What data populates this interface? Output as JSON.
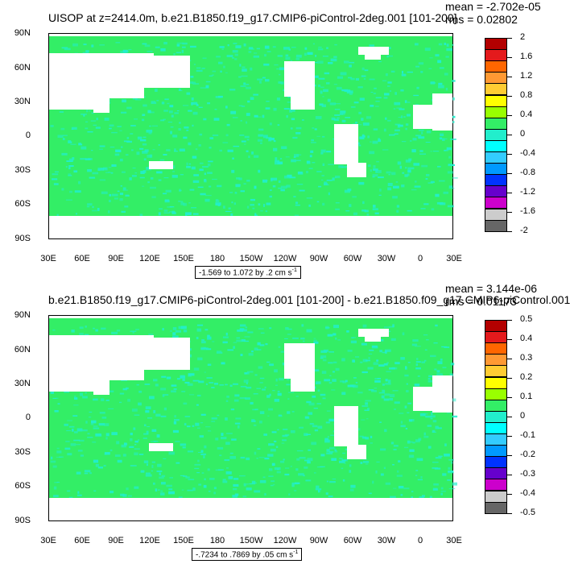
{
  "colors": {
    "ocean_main": "#33ee66",
    "ocean_alt": "#22eecc",
    "land": "#ffffff",
    "palette": [
      "#b30000",
      "#e41a1c",
      "#ff6600",
      "#ff9933",
      "#ffcc33",
      "#ffff00",
      "#99ff00",
      "#33ee66",
      "#22eecc",
      "#00ffff",
      "#33ccff",
      "#0099ff",
      "#0033ff",
      "#6600cc",
      "#cc00cc",
      "#cccccc",
      "#666666"
    ]
  },
  "latitude_labels": [
    "90N",
    "60N",
    "30N",
    "0",
    "30S",
    "60S",
    "90S"
  ],
  "longitude_labels": [
    "30E",
    "60E",
    "90E",
    "120E",
    "150E",
    "180",
    "150W",
    "120W",
    "90W",
    "60W",
    "30W",
    "0",
    "30E"
  ],
  "panels": [
    {
      "title": "UISOP at z=2414.0m, b.e21.B1850.f19_g17.CMIP6-piControl-2deg.001 [101-200]",
      "mean": "mean = -2.702e-05",
      "rms": "rms = 0.02802",
      "range_text": "-1.569 to 1.072 by .2 cm s",
      "range_unit_exp": "-1",
      "colorbar_labels": [
        "2",
        "1.6",
        "1.2",
        "0.8",
        "0.4",
        "0",
        "-0.4",
        "-0.8",
        "-1.2",
        "-1.6",
        "-2"
      ]
    },
    {
      "title": "b.e21.B1850.f19_g17.CMIP6-piControl-2deg.001 [101-200] - b.e21.B1850.f09_g17.CMIP6-piControl.001",
      "mean": "mean = 3.144e-06",
      "rms": "rms = 0.01173",
      "range_text": "-.7234 to .7869 by .05 cm s",
      "range_unit_exp": "-1",
      "colorbar_labels": [
        "0.5",
        "0.4",
        "0.3",
        "0.2",
        "0.1",
        "0",
        "-0.1",
        "-0.2",
        "-0.3",
        "-0.4",
        "-0.5"
      ]
    }
  ]
}
